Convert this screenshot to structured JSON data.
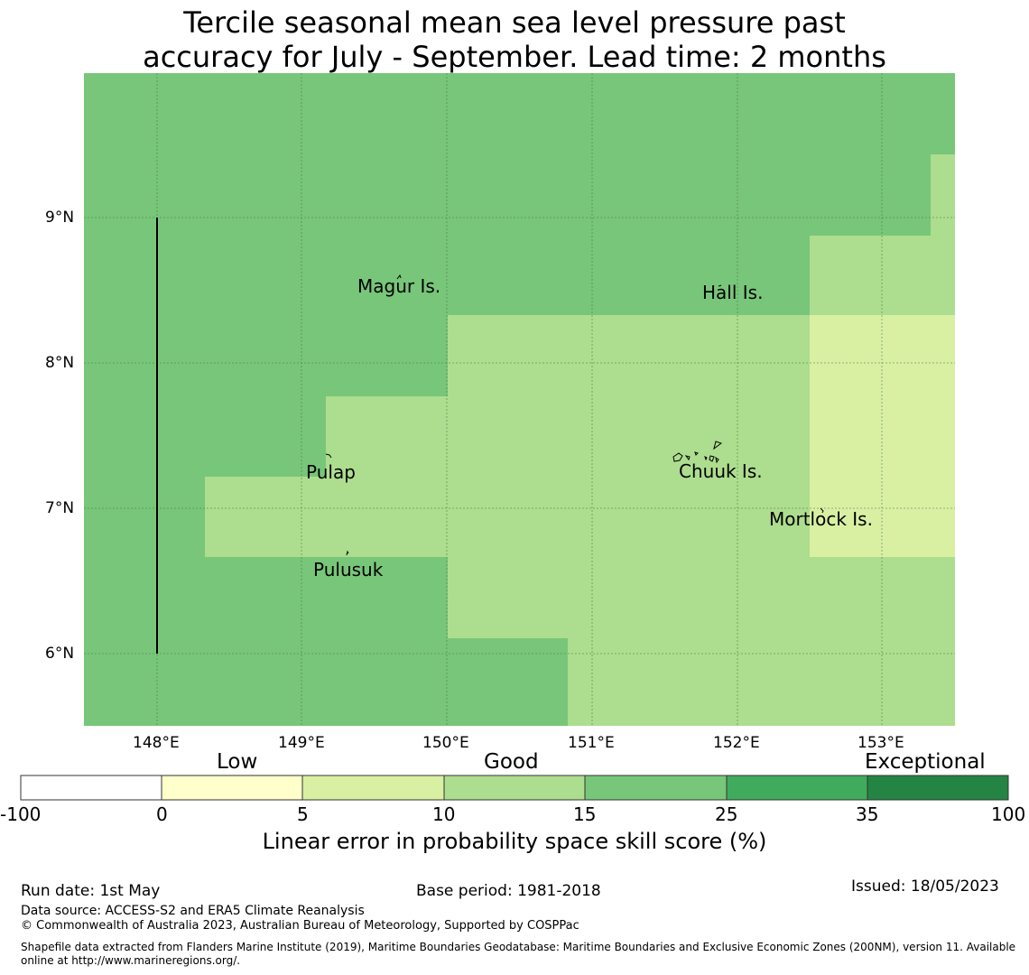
{
  "title_line1": "Tercile seasonal mean sea level pressure past",
  "title_line2": "accuracy for July - September. Lead time: 2 months",
  "map": {
    "lat_labels": [
      "9°N",
      "8°N",
      "7°N",
      "6°N"
    ],
    "lon_labels": [
      "148°E",
      "149°E",
      "150°E",
      "151°E",
      "152°E",
      "153°E"
    ],
    "places": [
      "Magur Is.",
      "Hall Is.",
      "Pulap",
      "Chuuk Is.",
      "Mortlock Is.",
      "Pulusuk"
    ],
    "colors": {
      "band_15_25": "#78c679",
      "band_10_15": "#addd8e",
      "band_5_10": "#d9f0a3"
    }
  },
  "colorbar": {
    "categories": [
      "Low",
      "Good",
      "Exceptional"
    ],
    "ticks": [
      "-100",
      "0",
      "5",
      "10",
      "15",
      "25",
      "35",
      "100"
    ],
    "colors": [
      "#ffffff",
      "#ffffcc",
      "#d9f0a3",
      "#addd8e",
      "#78c679",
      "#41ab5d",
      "#238443"
    ],
    "title": "Linear error in probability space skill score (%)"
  },
  "footer": {
    "run_date": "Run date: 1st May",
    "base_period": "Base period: 1981-2018",
    "issued": "Issued: 18/05/2023",
    "data_source": "Data source: ACCESS-S2 and ERA5 Climate Reanalysis",
    "copyright": "© Commonwealth of Australia 2023, Australian Bureau of Meteorology, Supported by COSPPac",
    "shapefile": "Shapefile data extracted from Flanders Marine Institute (2019), Maritime Boundaries Geodatabase: Maritime Boundaries and Exclusive Economic Zones (200NM), version 11. Available online at http://www.marineregions.org/."
  }
}
